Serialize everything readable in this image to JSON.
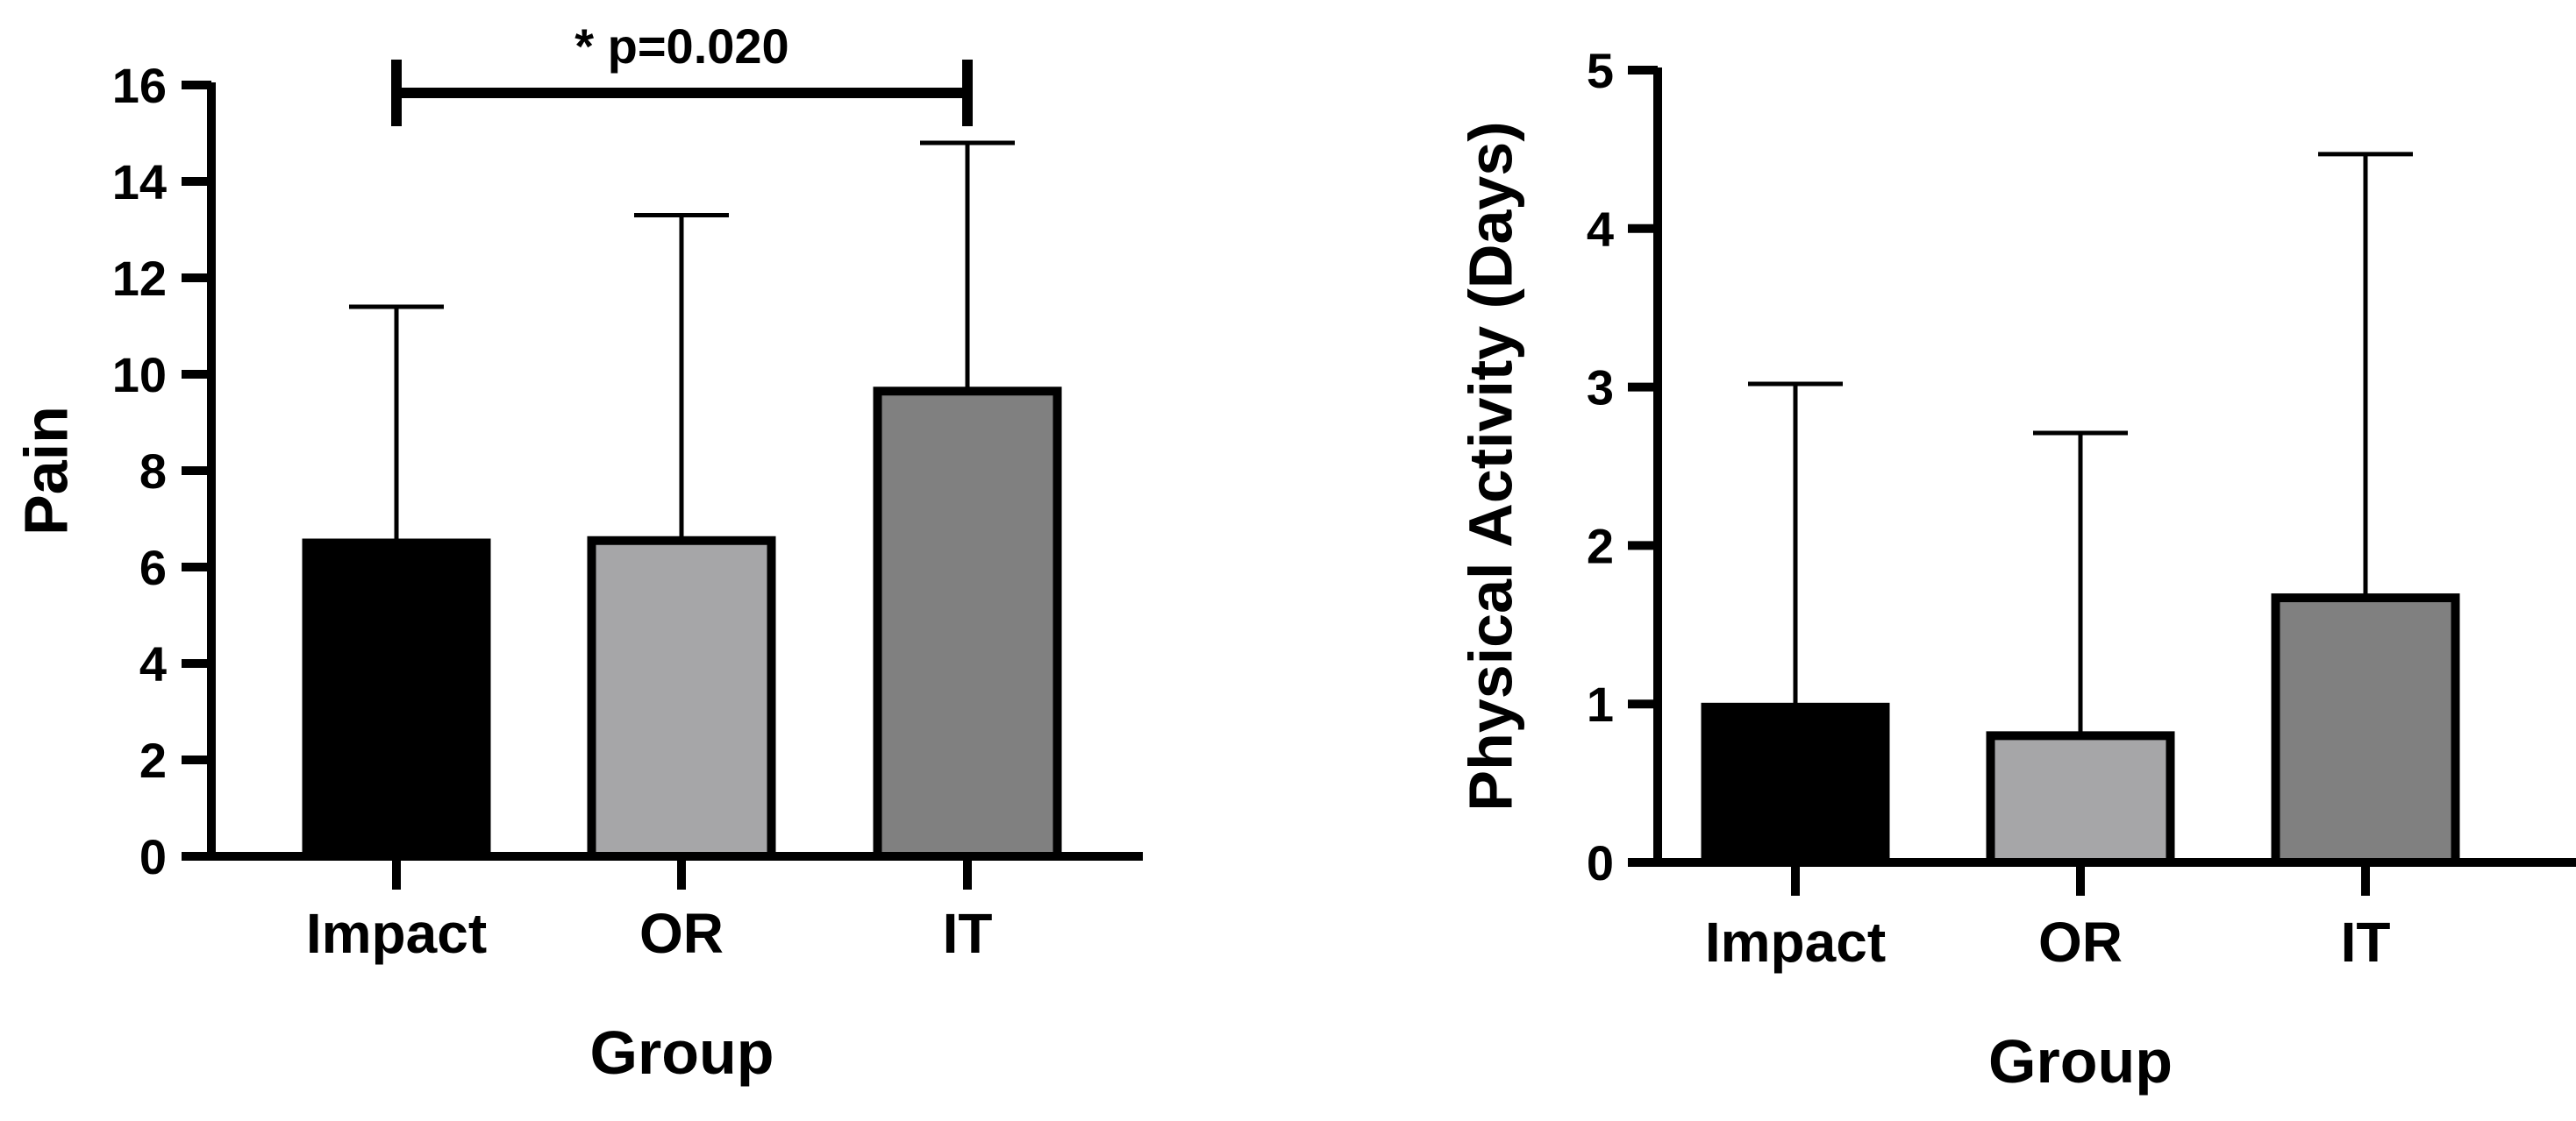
{
  "chart_data": [
    {
      "type": "bar",
      "title": "",
      "xlabel": "Group",
      "ylabel": "Pain",
      "categories": [
        "Impact",
        "OR",
        "IT"
      ],
      "values": [
        6.5,
        6.55,
        9.65
      ],
      "error_upper": [
        11.4,
        13.3,
        14.8
      ],
      "bar_colors": [
        "#000000",
        "#a6a6a8",
        "#808080"
      ],
      "ylim": [
        0,
        16
      ],
      "yticks": [
        "0",
        "2",
        "4",
        "6",
        "8",
        "10",
        "12",
        "14",
        "16"
      ],
      "grid": false,
      "annotation": {
        "label": "* p=0.020",
        "from_category": "Impact",
        "to_category": "IT"
      }
    },
    {
      "type": "bar",
      "title": "",
      "xlabel": "Group",
      "ylabel": "Physical Activity (Days)",
      "categories": [
        "Impact",
        "OR",
        "IT"
      ],
      "values": [
        0.98,
        0.8,
        1.67
      ],
      "error_upper": [
        3.02,
        2.71,
        4.47
      ],
      "bar_colors": [
        "#000000",
        "#a6a6a8",
        "#808080"
      ],
      "ylim": [
        0,
        5
      ],
      "yticks": [
        "0",
        "1",
        "2",
        "3",
        "4",
        "5"
      ],
      "grid": false
    }
  ]
}
